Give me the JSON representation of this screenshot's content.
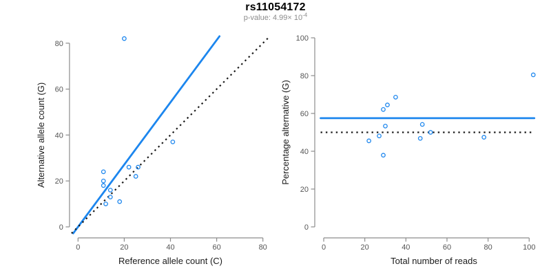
{
  "header": {
    "title": "rs11054172",
    "subtitle_prefix": "p-value: 4.99× 10",
    "subtitle_exponent": "-4"
  },
  "colors": {
    "accent_blue": "#1C86EE",
    "line_black": "#1a1a1a",
    "axis_gray": "#8c8c8c",
    "tick_label_gray": "#555555",
    "axis_title_color": "#1a1a1a",
    "subtitle_gray": "#8c8c8c"
  },
  "chart_data": [
    {
      "type": "scatter",
      "name": "allele-counts-scatter",
      "xlabel": "Reference allele count (C)",
      "ylabel": "Alternative allele count (G)",
      "xlim": [
        0,
        80
      ],
      "ylim": [
        0,
        80
      ],
      "xticks": [
        0,
        20,
        40,
        60,
        80
      ],
      "yticks": [
        0,
        20,
        40,
        60,
        80
      ],
      "grid": false,
      "legend": "none",
      "marker": "open-circle",
      "points": [
        [
          20,
          82
        ],
        [
          41,
          37
        ],
        [
          26,
          26
        ],
        [
          22,
          26
        ],
        [
          25,
          22
        ],
        [
          11,
          24
        ],
        [
          11,
          20
        ],
        [
          11,
          18
        ],
        [
          14,
          16
        ],
        [
          14,
          13
        ],
        [
          12,
          10
        ],
        [
          18,
          11
        ]
      ],
      "lines": [
        {
          "style": "solid",
          "slope": 1.356,
          "intercept": 0,
          "color": "accent_blue",
          "meaning": "fitted allelic ratio"
        },
        {
          "style": "dotted",
          "slope": 1,
          "intercept": 0,
          "color": "line_black",
          "meaning": "1:1 identity"
        }
      ]
    },
    {
      "type": "scatter",
      "name": "percentage-vs-reads-scatter",
      "xlabel": "Total number of reads",
      "ylabel": "Percentage alternative (G)",
      "xlim": [
        0,
        100
      ],
      "ylim": [
        0,
        100
      ],
      "xticks": [
        0,
        20,
        40,
        60,
        80,
        100
      ],
      "yticks": [
        0,
        20,
        40,
        60,
        80,
        100
      ],
      "grid": false,
      "legend": "none",
      "marker": "open-circle",
      "points": [
        [
          102,
          80.4
        ],
        [
          78,
          47.4
        ],
        [
          52,
          50.0
        ],
        [
          48,
          54.2
        ],
        [
          47,
          46.8
        ],
        [
          35,
          68.6
        ],
        [
          31,
          64.5
        ],
        [
          29,
          62.1
        ],
        [
          30,
          53.3
        ],
        [
          27,
          48.1
        ],
        [
          22,
          45.5
        ],
        [
          29,
          37.9
        ]
      ],
      "lines": [
        {
          "style": "solid",
          "hline": 57.5,
          "color": "accent_blue",
          "meaning": "mean percentage alternative"
        },
        {
          "style": "dotted",
          "hline": 50,
          "color": "line_black",
          "meaning": "50% balanced expression"
        }
      ]
    }
  ]
}
